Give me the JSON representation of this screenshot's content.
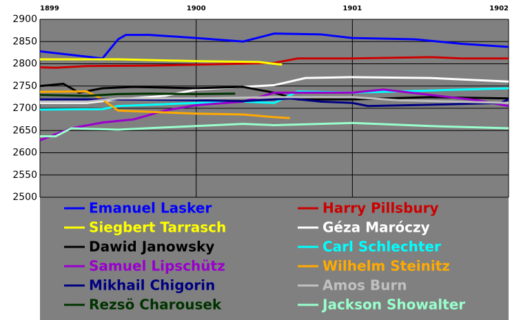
{
  "chart_data": {
    "type": "line",
    "xlim": [
      1899,
      1902
    ],
    "xticks": [
      1899,
      1900,
      1901,
      1902
    ],
    "ylim": [
      2500,
      2900
    ],
    "yticks": [
      2500,
      2550,
      2600,
      2650,
      2700,
      2750,
      2800,
      2850,
      2900
    ],
    "grid": true,
    "legend": "bottom",
    "background": "#808080",
    "series": [
      {
        "name": "Emanuel Lasker",
        "color": "#0000ff",
        "x": [
          1899.0,
          1899.4,
          1899.5,
          1899.55,
          1899.7,
          1900.0,
          1900.3,
          1900.5,
          1900.8,
          1901.0,
          1901.4,
          1901.7,
          1902.0
        ],
        "values": [
          2828,
          2812,
          2855,
          2865,
          2865,
          2858,
          2850,
          2868,
          2866,
          2858,
          2855,
          2845,
          2838
        ]
      },
      {
        "name": "Harry Pillsbury",
        "color": "#cc0000",
        "x": [
          1899.0,
          1899.1,
          1899.3,
          1899.7,
          1900.0,
          1900.5,
          1900.65,
          1901.0,
          1901.5,
          1901.7,
          1902.0
        ],
        "values": [
          2792,
          2791,
          2795,
          2796,
          2798,
          2802,
          2812,
          2812,
          2815,
          2812,
          2812
        ]
      },
      {
        "name": "Siegbert Tarrasch",
        "color": "#ffff00",
        "x": [
          1899.0,
          1899.5,
          1900.0,
          1900.4,
          1900.5,
          1900.55
        ],
        "values": [
          2810,
          2810,
          2806,
          2804,
          2800,
          2798
        ]
      },
      {
        "name": "Géza Maróczy",
        "color": "#ffffff",
        "x": [
          1899.0,
          1899.3,
          1899.5,
          1899.8,
          1900.0,
          1900.3,
          1900.5,
          1900.6,
          1900.7,
          1901.0,
          1901.5,
          1902.0
        ],
        "values": [
          2712,
          2712,
          2720,
          2728,
          2742,
          2748,
          2752,
          2760,
          2768,
          2770,
          2768,
          2760
        ]
      },
      {
        "name": "Dawid Janowsky",
        "color": "#000000",
        "x": [
          1899.0,
          1899.15,
          1899.25,
          1899.4,
          1899.6,
          1900.0,
          1900.3,
          1900.5,
          1900.65,
          1901.0,
          1901.5,
          1902.0
        ],
        "values": [
          2750,
          2755,
          2735,
          2745,
          2748,
          2745,
          2748,
          2735,
          2720,
          2720,
          2725,
          2722
        ]
      },
      {
        "name": "Carl Schlechter",
        "color": "#00ffff",
        "x": [
          1899.0,
          1899.4,
          1899.5,
          1900.0,
          1900.3,
          1900.5,
          1900.65,
          1901.0,
          1901.5,
          1902.0
        ],
        "values": [
          2697,
          2698,
          2705,
          2712,
          2715,
          2712,
          2738,
          2735,
          2740,
          2745
        ]
      },
      {
        "name": "Samuel Lipschütz",
        "color": "#9900cc",
        "x": [
          1899.0,
          1899.2,
          1899.4,
          1899.6,
          1899.8,
          1900.0,
          1900.3,
          1900.5,
          1900.7,
          1901.0,
          1901.2,
          1901.5,
          1901.8,
          1902.0
        ],
        "values": [
          2628,
          2655,
          2668,
          2675,
          2695,
          2707,
          2715,
          2735,
          2735,
          2735,
          2742,
          2730,
          2718,
          2705
        ]
      },
      {
        "name": "Wilhelm Steinitz",
        "color": "#ffaa00",
        "x": [
          1899.0,
          1899.3,
          1899.4,
          1899.5,
          1899.7,
          1900.0,
          1900.3,
          1900.5,
          1900.6
        ],
        "values": [
          2737,
          2738,
          2720,
          2695,
          2692,
          2688,
          2686,
          2680,
          2678
        ]
      },
      {
        "name": "Mikhail Chigorin",
        "color": "#000080",
        "x": [
          1899.0,
          1899.5,
          1900.0,
          1900.3,
          1900.6,
          1900.8,
          1901.0,
          1901.1,
          1901.5,
          1901.95,
          1902.0
        ],
        "values": [
          2720,
          2720,
          2718,
          2716,
          2722,
          2715,
          2712,
          2705,
          2708,
          2712,
          2720
        ]
      },
      {
        "name": "Amos Burn",
        "color": "#c0c0c0",
        "x": [
          1899.0,
          1899.3,
          1899.5,
          1900.0,
          1900.5,
          1901.0,
          1901.3,
          1902.0
        ],
        "values": [
          2715,
          2715,
          2722,
          2722,
          2725,
          2725,
          2718,
          2712
        ]
      },
      {
        "name": "Rezsö Charousek",
        "color": "#003300",
        "x": [
          1899.0,
          1899.3,
          1899.5,
          1899.7,
          1900.0,
          1900.25
        ],
        "values": [
          2730,
          2728,
          2732,
          2733,
          2732,
          2733
        ]
      },
      {
        "name": "Jackson Showalter",
        "color": "#99ffcc",
        "x": [
          1899.0,
          1899.1,
          1899.2,
          1899.5,
          1899.8,
          1900.0,
          1900.3,
          1900.5,
          1901.0,
          1901.5,
          1902.0
        ],
        "values": [
          2637,
          2637,
          2655,
          2652,
          2657,
          2660,
          2665,
          2662,
          2667,
          2660,
          2655
        ]
      }
    ]
  }
}
